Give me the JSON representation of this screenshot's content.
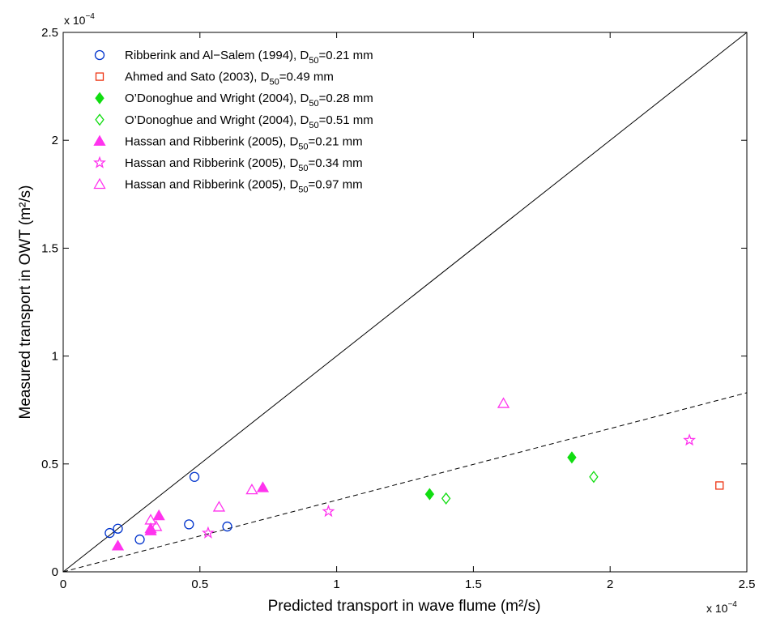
{
  "chart_data": {
    "type": "scatter",
    "xlabel": "Predicted transport in wave flume (m²/s)",
    "ylabel": "Measured transport in OWT (m²/s)",
    "x_multiplier_label": "x 10",
    "x_multiplier_exp": "−4",
    "y_multiplier_label": "x 10",
    "y_multiplier_exp": "−4",
    "xlim": [
      0,
      0.00025
    ],
    "ylim": [
      0,
      0.00025
    ],
    "x_ticks": [
      0,
      5e-05,
      0.0001,
      0.00015,
      0.0002,
      0.00025
    ],
    "y_ticks": [
      0,
      5e-05,
      0.0001,
      0.00015,
      0.0002,
      0.00025
    ],
    "x_tick_labels": [
      "0",
      "0.5",
      "1",
      "1.5",
      "2",
      "2.5"
    ],
    "y_tick_labels": [
      "0",
      "0.5",
      "1",
      "1.5",
      "2",
      "2.5"
    ],
    "grid": false,
    "legend_position": "top-left",
    "reference_lines": [
      {
        "style": "solid",
        "slope": 1,
        "x": [
          0,
          0.00025
        ],
        "y": [
          0,
          0.00025
        ]
      },
      {
        "style": "dashed",
        "slope": 0.333,
        "x": [
          0,
          0.00025
        ],
        "y": [
          0,
          8.3e-05
        ]
      }
    ],
    "series": [
      {
        "legend_prefix": "Ribberink and Al−Salem (1994), D",
        "legend_sub": "50",
        "legend_suffix": "=0.21 mm",
        "marker": "circle",
        "filled": false,
        "color": "#0033cc",
        "x": [
          1.7e-05,
          2e-05,
          2.8e-05,
          4.6e-05,
          4.8e-05,
          6e-05
        ],
        "y": [
          1.8e-05,
          2e-05,
          1.5e-05,
          2.2e-05,
          4.4e-05,
          2.1e-05
        ]
      },
      {
        "legend_prefix": "Ahmed and Sato (2003), D",
        "legend_sub": "50",
        "legend_suffix": "=0.49 mm",
        "marker": "square",
        "filled": false,
        "color": "#ee3311",
        "x": [
          0.00024
        ],
        "y": [
          4e-05
        ]
      },
      {
        "legend_prefix": "O’Donoghue and Wright (2004), D",
        "legend_sub": "50",
        "legend_suffix": "=0.28 mm",
        "marker": "diamond",
        "filled": true,
        "color": "#11dd11",
        "x": [
          0.000134,
          0.000186
        ],
        "y": [
          3.6e-05,
          5.3e-05
        ]
      },
      {
        "legend_prefix": "O’Donoghue and Wright (2004), D",
        "legend_sub": "50",
        "legend_suffix": "=0.51 mm",
        "marker": "diamond",
        "filled": false,
        "color": "#11dd11",
        "x": [
          0.00014,
          0.000194
        ],
        "y": [
          3.4e-05,
          4.4e-05
        ]
      },
      {
        "legend_prefix": "Hassan and Ribberink (2005), D",
        "legend_sub": "50",
        "legend_suffix": "=0.21 mm",
        "marker": "triangle",
        "filled": true,
        "color": "#ff33ee",
        "x": [
          2e-05,
          3.2e-05,
          3.2e-05,
          3.5e-05,
          7.3e-05
        ],
        "y": [
          1.2e-05,
          2e-05,
          1.9e-05,
          2.6e-05,
          3.9e-05
        ]
      },
      {
        "legend_prefix": "Hassan and Ribberink (2005), D",
        "legend_sub": "50",
        "legend_suffix": "=0.34 mm",
        "marker": "star",
        "filled": false,
        "color": "#ff33ee",
        "x": [
          5.3e-05,
          9.7e-05,
          0.000229
        ],
        "y": [
          1.8e-05,
          2.8e-05,
          6.1e-05
        ]
      },
      {
        "legend_prefix": "Hassan and Ribberink (2005), D",
        "legend_sub": "50",
        "legend_suffix": "=0.97 mm",
        "marker": "triangle",
        "filled": false,
        "color": "#ff33ee",
        "x": [
          3.2e-05,
          3.4e-05,
          5.7e-05,
          6.9e-05,
          0.000161
        ],
        "y": [
          2.4e-05,
          2.1e-05,
          3e-05,
          3.8e-05,
          7.8e-05
        ]
      }
    ]
  }
}
